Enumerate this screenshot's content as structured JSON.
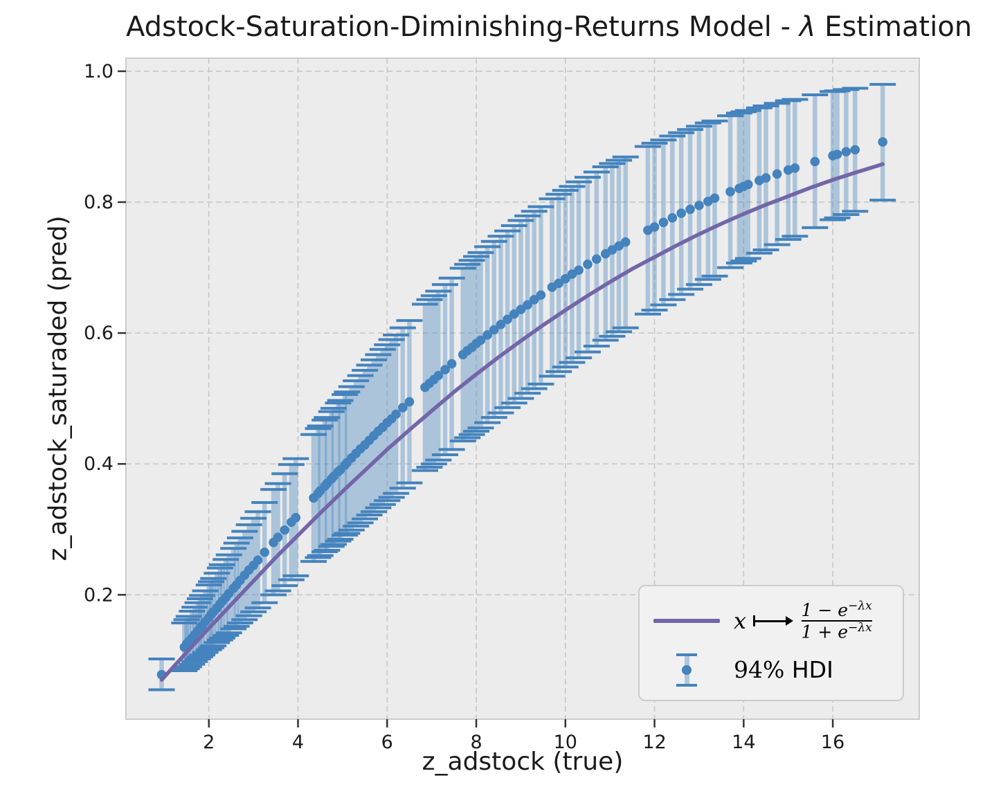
{
  "title": {
    "prefix": "Adstock-Saturation-Diminishing-Returns Model - ",
    "lambda": "λ",
    "suffix": " Estimation"
  },
  "axes": {
    "xlabel": "z_adstock (true)",
    "ylabel": "z_adstock_saturaded (pred)"
  },
  "legend": {
    "curve_label": {
      "lhs": "x",
      "arrow": "⟼",
      "num_main": "1 − e",
      "num_exp": "−λx",
      "den_main": "1 + e",
      "den_exp": "−λx"
    },
    "hdi_math": "94%",
    "hdi_text": " HDI"
  },
  "colors": {
    "figure_bg": "#ffffff",
    "axes_bg": "#ececec",
    "grid": "#c6c6c6",
    "spine": "#cbcbcb",
    "tick": "#333333",
    "text": "#1a1a1a",
    "scatter": "#4483bd",
    "band": "rgba(68,131,189,0.38)",
    "curve": "#7366a8",
    "legend_bg": "#f1f1f1",
    "legend_border": "#cccccc"
  },
  "chart_data": {
    "type": "scatter",
    "title": "Adstock-Saturation-Diminishing-Returns Model - λ Estimation",
    "xlabel": "z_adstock (true)",
    "ylabel": "z_adstock_saturaded (pred)",
    "xlim": [
      0.14,
      17.94
    ],
    "ylim": [
      0.01,
      1.02
    ],
    "xticks": [
      2,
      4,
      6,
      8,
      10,
      12,
      14,
      16
    ],
    "yticks": [
      0.2,
      0.4,
      0.6,
      0.8,
      1.0
    ],
    "grid": "dashed",
    "legend_position": "lower right",
    "series": [
      {
        "name": "x ↦ (1−e^−λx)/(1+e^−λx)",
        "type": "line",
        "color": "#7366a8",
        "x": [
          0.94,
          1.5,
          2,
          2.5,
          3,
          3.5,
          4,
          4.5,
          5,
          5.5,
          6,
          6.5,
          7,
          7.5,
          8,
          8.5,
          9,
          9.5,
          10,
          10.5,
          11,
          11.5,
          12,
          12.5,
          13,
          13.5,
          14,
          14.5,
          15,
          15.5,
          16,
          16.5,
          17.12
        ],
        "y": [
          0.07,
          0.112,
          0.149,
          0.185,
          0.221,
          0.257,
          0.291,
          0.325,
          0.358,
          0.39,
          0.422,
          0.452,
          0.481,
          0.51,
          0.537,
          0.563,
          0.588,
          0.612,
          0.635,
          0.657,
          0.678,
          0.698,
          0.716,
          0.734,
          0.751,
          0.767,
          0.782,
          0.796,
          0.809,
          0.822,
          0.834,
          0.845,
          0.858
        ]
      },
      {
        "name": "94% HDI",
        "type": "errorbar-scatter",
        "color": "#4483bd",
        "x": [
          0.94,
          1.45,
          1.5,
          1.55,
          1.62,
          1.68,
          1.75,
          1.8,
          1.85,
          1.92,
          2.0,
          2.05,
          2.1,
          2.18,
          2.25,
          2.3,
          2.38,
          2.45,
          2.55,
          2.62,
          2.7,
          2.8,
          2.9,
          3.0,
          3.1,
          3.25,
          3.45,
          3.55,
          3.7,
          3.85,
          3.95,
          4.35,
          4.45,
          4.5,
          4.6,
          4.65,
          4.75,
          4.8,
          4.9,
          4.95,
          5.05,
          5.1,
          5.2,
          5.3,
          5.4,
          5.5,
          5.6,
          5.7,
          5.8,
          5.9,
          6.0,
          6.1,
          6.2,
          6.35,
          6.5,
          6.85,
          6.95,
          7.05,
          7.15,
          7.3,
          7.45,
          7.7,
          7.8,
          7.9,
          8.0,
          8.1,
          8.25,
          8.4,
          8.55,
          8.7,
          8.85,
          9.0,
          9.15,
          9.3,
          9.45,
          9.7,
          9.85,
          10.0,
          10.15,
          10.3,
          10.5,
          10.7,
          10.9,
          11.05,
          11.2,
          11.35,
          11.85,
          12.0,
          12.2,
          12.4,
          12.6,
          12.8,
          13.0,
          13.2,
          13.35,
          13.7,
          13.9,
          14.0,
          14.1,
          14.35,
          14.5,
          14.75,
          15.0,
          15.15,
          15.6,
          16.0,
          16.1,
          16.3,
          16.5,
          17.12
        ],
        "y": [
          0.078,
          0.12,
          0.125,
          0.129,
          0.134,
          0.139,
          0.145,
          0.149,
          0.153,
          0.159,
          0.165,
          0.17,
          0.174,
          0.18,
          0.186,
          0.19,
          0.196,
          0.202,
          0.21,
          0.215,
          0.222,
          0.23,
          0.238,
          0.245,
          0.253,
          0.265,
          0.28,
          0.288,
          0.299,
          0.311,
          0.318,
          0.348,
          0.355,
          0.359,
          0.366,
          0.37,
          0.377,
          0.381,
          0.388,
          0.391,
          0.398,
          0.402,
          0.409,
          0.416,
          0.423,
          0.429,
          0.436,
          0.443,
          0.45,
          0.456,
          0.463,
          0.469,
          0.476,
          0.486,
          0.495,
          0.517,
          0.523,
          0.529,
          0.535,
          0.544,
          0.553,
          0.567,
          0.573,
          0.578,
          0.584,
          0.589,
          0.597,
          0.605,
          0.613,
          0.621,
          0.629,
          0.636,
          0.643,
          0.651,
          0.658,
          0.67,
          0.676,
          0.683,
          0.69,
          0.696,
          0.705,
          0.713,
          0.721,
          0.727,
          0.733,
          0.739,
          0.757,
          0.762,
          0.769,
          0.776,
          0.783,
          0.789,
          0.795,
          0.801,
          0.806,
          0.816,
          0.821,
          0.824,
          0.827,
          0.833,
          0.837,
          0.843,
          0.849,
          0.852,
          0.862,
          0.871,
          0.873,
          0.877,
          0.88,
          0.892
        ],
        "lo": [
          0.055,
          0.084,
          0.087,
          0.09,
          0.094,
          0.098,
          0.102,
          0.105,
          0.108,
          0.112,
          0.116,
          0.119,
          0.122,
          0.127,
          0.131,
          0.134,
          0.138,
          0.142,
          0.148,
          0.152,
          0.157,
          0.162,
          0.168,
          0.174,
          0.18,
          0.188,
          0.2,
          0.206,
          0.214,
          0.223,
          0.229,
          0.251,
          0.257,
          0.26,
          0.266,
          0.268,
          0.274,
          0.277,
          0.282,
          0.285,
          0.291,
          0.294,
          0.299,
          0.305,
          0.31,
          0.316,
          0.322,
          0.327,
          0.333,
          0.338,
          0.344,
          0.349,
          0.355,
          0.363,
          0.371,
          0.39,
          0.395,
          0.4,
          0.406,
          0.414,
          0.422,
          0.435,
          0.44,
          0.445,
          0.45,
          0.455,
          0.463,
          0.471,
          0.478,
          0.486,
          0.493,
          0.5,
          0.508,
          0.515,
          0.522,
          0.534,
          0.541,
          0.548,
          0.555,
          0.562,
          0.571,
          0.58,
          0.589,
          0.595,
          0.602,
          0.608,
          0.629,
          0.635,
          0.643,
          0.651,
          0.659,
          0.667,
          0.674,
          0.682,
          0.687,
          0.7,
          0.707,
          0.71,
          0.714,
          0.722,
          0.727,
          0.735,
          0.743,
          0.748,
          0.761,
          0.773,
          0.776,
          0.781,
          0.786,
          0.803
        ],
        "hi": [
          0.102,
          0.157,
          0.162,
          0.167,
          0.175,
          0.181,
          0.188,
          0.194,
          0.199,
          0.206,
          0.215,
          0.22,
          0.225,
          0.233,
          0.241,
          0.246,
          0.254,
          0.261,
          0.271,
          0.279,
          0.287,
          0.297,
          0.307,
          0.317,
          0.327,
          0.341,
          0.361,
          0.37,
          0.385,
          0.399,
          0.408,
          0.445,
          0.454,
          0.458,
          0.467,
          0.471,
          0.48,
          0.485,
          0.493,
          0.497,
          0.506,
          0.51,
          0.518,
          0.527,
          0.535,
          0.543,
          0.551,
          0.559,
          0.567,
          0.575,
          0.582,
          0.59,
          0.597,
          0.608,
          0.619,
          0.644,
          0.651,
          0.657,
          0.664,
          0.674,
          0.684,
          0.699,
          0.705,
          0.711,
          0.717,
          0.723,
          0.732,
          0.74,
          0.748,
          0.756,
          0.764,
          0.772,
          0.779,
          0.786,
          0.793,
          0.805,
          0.812,
          0.818,
          0.824,
          0.831,
          0.838,
          0.846,
          0.854,
          0.859,
          0.864,
          0.869,
          0.885,
          0.89,
          0.895,
          0.901,
          0.906,
          0.911,
          0.916,
          0.921,
          0.924,
          0.932,
          0.936,
          0.938,
          0.94,
          0.944,
          0.947,
          0.951,
          0.955,
          0.957,
          0.964,
          0.969,
          0.97,
          0.972,
          0.974,
          0.98
        ]
      }
    ]
  }
}
